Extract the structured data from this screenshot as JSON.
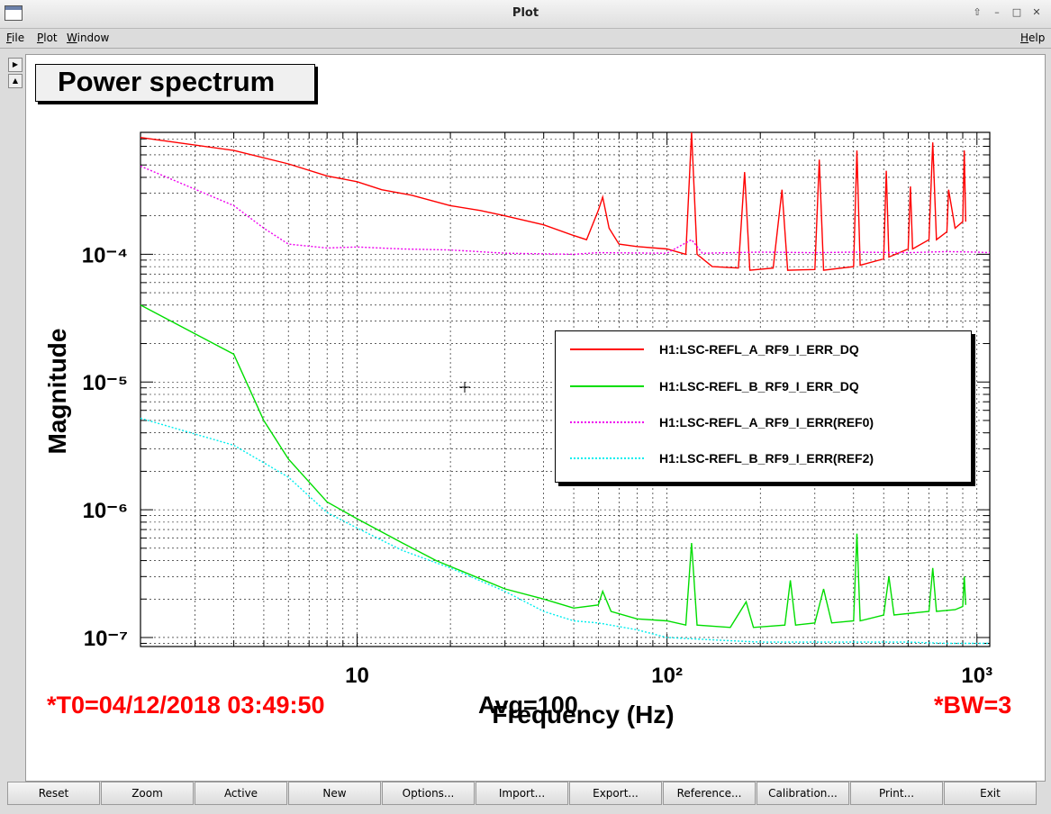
{
  "window": {
    "title": "Plot"
  },
  "menu": {
    "file": "File",
    "plot": "Plot",
    "window": "Window",
    "help": "Help"
  },
  "plot_title": "Power spectrum",
  "chart_data": {
    "type": "line",
    "title": "Power spectrum",
    "xlabel": "Frequency (Hz)",
    "ylabel": "Magnitude",
    "xscale": "log",
    "yscale": "log",
    "xlim": [
      2,
      1100
    ],
    "ylim": [
      8.5e-08,
      0.0009
    ],
    "x_ticks": [
      {
        "value": 10,
        "label": "10"
      },
      {
        "value": 100,
        "label": "10²"
      },
      {
        "value": 1000,
        "label": "10³"
      }
    ],
    "y_ticks": [
      {
        "value": 1e-07,
        "label": "10⁻⁷"
      },
      {
        "value": 1e-06,
        "label": "10⁻⁶"
      },
      {
        "value": 1e-05,
        "label": "10⁻⁵"
      },
      {
        "value": 0.0001,
        "label": "10⁻⁴"
      }
    ],
    "grid": true,
    "legend_position": "right-middle",
    "series": [
      {
        "name": "H1:LSC-REFL_A_RF9_I_ERR_DQ",
        "color": "#ff0000",
        "dash": "solid",
        "points": [
          [
            2,
            0.00082
          ],
          [
            4,
            0.00065
          ],
          [
            6,
            0.00051
          ],
          [
            8,
            0.00041
          ],
          [
            10,
            0.00037
          ],
          [
            12,
            0.00032
          ],
          [
            15,
            0.00029
          ],
          [
            20,
            0.00024
          ],
          [
            25,
            0.00022
          ],
          [
            30,
            0.0002
          ],
          [
            40,
            0.00017
          ],
          [
            50,
            0.00014
          ],
          [
            55,
            0.00013
          ],
          [
            60,
            0.00022
          ],
          [
            62,
            0.00028
          ],
          [
            65,
            0.00016
          ],
          [
            70,
            0.00012
          ],
          [
            80,
            0.000115
          ],
          [
            100,
            0.00011
          ],
          [
            115,
            0.0001
          ],
          [
            120,
            0.0009
          ],
          [
            125,
            0.0001
          ],
          [
            140,
            8e-05
          ],
          [
            170,
            7.8e-05
          ],
          [
            178,
            0.00044
          ],
          [
            185,
            7.5e-05
          ],
          [
            220,
            7.8e-05
          ],
          [
            235,
            0.00032
          ],
          [
            245,
            7.5e-05
          ],
          [
            300,
            7.6e-05
          ],
          [
            310,
            0.00055
          ],
          [
            320,
            7.5e-05
          ],
          [
            400,
            8e-05
          ],
          [
            410,
            0.00065
          ],
          [
            420,
            8.2e-05
          ],
          [
            500,
            9.2e-05
          ],
          [
            510,
            0.00045
          ],
          [
            520,
            9.5e-05
          ],
          [
            600,
            0.00011
          ],
          [
            610,
            0.00034
          ],
          [
            620,
            0.00011
          ],
          [
            700,
            0.00013
          ],
          [
            720,
            0.00075
          ],
          [
            740,
            0.00013
          ],
          [
            800,
            0.00015
          ],
          [
            810,
            0.00032
          ],
          [
            850,
            0.00016
          ],
          [
            900,
            0.00018
          ],
          [
            910,
            0.00065
          ],
          [
            920,
            0.00018
          ]
        ]
      },
      {
        "name": "H1:LSC-REFL_B_RF9_I_ERR_DQ",
        "color": "#00dd00",
        "dash": "solid",
        "points": [
          [
            2,
            4e-05
          ],
          [
            4,
            1.65e-05
          ],
          [
            5,
            5e-06
          ],
          [
            6,
            2.5e-06
          ],
          [
            8,
            1.15e-06
          ],
          [
            10,
            8.5e-07
          ],
          [
            14,
            5.5e-07
          ],
          [
            18,
            4e-07
          ],
          [
            24,
            3e-07
          ],
          [
            30,
            2.4e-07
          ],
          [
            40,
            2e-07
          ],
          [
            50,
            1.7e-07
          ],
          [
            60,
            1.8e-07
          ],
          [
            62,
            2.3e-07
          ],
          [
            66,
            1.6e-07
          ],
          [
            80,
            1.4e-07
          ],
          [
            100,
            1.35e-07
          ],
          [
            115,
            1.25e-07
          ],
          [
            120,
            5.5e-07
          ],
          [
            125,
            1.25e-07
          ],
          [
            160,
            1.2e-07
          ],
          [
            180,
            1.9e-07
          ],
          [
            190,
            1.2e-07
          ],
          [
            240,
            1.25e-07
          ],
          [
            250,
            2.8e-07
          ],
          [
            260,
            1.25e-07
          ],
          [
            300,
            1.3e-07
          ],
          [
            320,
            2.4e-07
          ],
          [
            340,
            1.3e-07
          ],
          [
            400,
            1.35e-07
          ],
          [
            410,
            6.5e-07
          ],
          [
            420,
            1.35e-07
          ],
          [
            500,
            1.5e-07
          ],
          [
            520,
            3e-07
          ],
          [
            540,
            1.5e-07
          ],
          [
            700,
            1.6e-07
          ],
          [
            720,
            3.5e-07
          ],
          [
            740,
            1.6e-07
          ],
          [
            850,
            1.65e-07
          ],
          [
            900,
            1.75e-07
          ],
          [
            910,
            3e-07
          ],
          [
            920,
            1.8e-07
          ]
        ]
      },
      {
        "name": "H1:LSC-REFL_A_RF9_I_ERR(REF0)",
        "color": "#ee00ee",
        "dash": "dotted",
        "points": [
          [
            2,
            0.00049
          ],
          [
            4,
            0.00024
          ],
          [
            5,
            0.00016
          ],
          [
            6,
            0.00012
          ],
          [
            8,
            0.000112
          ],
          [
            10,
            0.000114
          ],
          [
            14,
            0.00011
          ],
          [
            20,
            0.000108
          ],
          [
            30,
            0.000102
          ],
          [
            50,
            0.0001
          ],
          [
            60,
            0.000103
          ],
          [
            100,
            0.000102
          ],
          [
            120,
            0.00013
          ],
          [
            130,
            0.000102
          ],
          [
            200,
            0.000104
          ],
          [
            300,
            0.000103
          ],
          [
            400,
            0.000104
          ],
          [
            600,
            0.000103
          ],
          [
            800,
            0.000105
          ],
          [
            1000,
            0.000104
          ],
          [
            1100,
            0.000103
          ]
        ]
      },
      {
        "name": "H1:LSC-REFL_B_RF9_I_ERR(REF2)",
        "color": "#00eeee",
        "dash": "dotted",
        "points": [
          [
            2,
            5.2e-06
          ],
          [
            4,
            3.2e-06
          ],
          [
            6,
            1.8e-06
          ],
          [
            8,
            9.5e-07
          ],
          [
            10,
            7.2e-07
          ],
          [
            14,
            4.8e-07
          ],
          [
            20,
            3.5e-07
          ],
          [
            30,
            2.3e-07
          ],
          [
            40,
            1.6e-07
          ],
          [
            50,
            1.35e-07
          ],
          [
            60,
            1.3e-07
          ],
          [
            80,
            1.15e-07
          ],
          [
            100,
            1e-07
          ],
          [
            150,
            9.5e-08
          ],
          [
            200,
            9.2e-08
          ],
          [
            400,
            9.2e-08
          ],
          [
            600,
            9.2e-08
          ],
          [
            800,
            9e-08
          ],
          [
            1000,
            9e-08
          ],
          [
            1100,
            9e-08
          ]
        ]
      }
    ]
  },
  "footer": {
    "t0": "*T0=04/12/2018 03:49:50",
    "avg": "Avg=100",
    "bw": "*BW=3"
  },
  "colors": {
    "footer_red": "#ff0000",
    "footer_black": "#000000"
  },
  "buttons": [
    "Reset",
    "Zoom",
    "Active",
    "New",
    "Options...",
    "Import...",
    "Export...",
    "Reference...",
    "Calibration...",
    "Print...",
    "Exit"
  ]
}
